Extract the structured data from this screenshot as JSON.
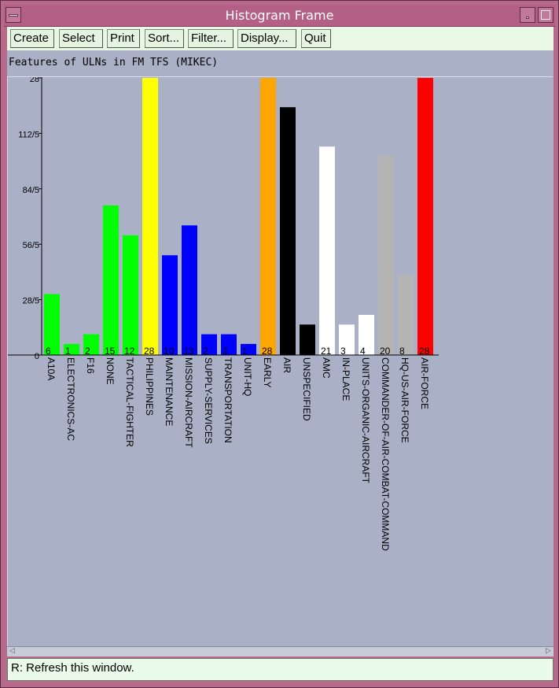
{
  "window": {
    "title": "Histogram Frame"
  },
  "toolbar": {
    "buttons": [
      {
        "label": "Create"
      },
      {
        "label": "Select"
      },
      {
        "label": "Print"
      },
      {
        "label": "Sort..."
      },
      {
        "label": "Filter..."
      },
      {
        "label": "Display..."
      },
      {
        "label": "Quit"
      }
    ]
  },
  "status": {
    "text": "R: Refresh this window."
  },
  "chart_data": {
    "type": "bar",
    "title": "Features of ULNs in FM TFS (MIKEC)",
    "y_ticks": [
      "0",
      "28/5",
      "56/5",
      "84/5",
      "112/5",
      "28"
    ],
    "ylim": [
      0,
      28
    ],
    "grid": false,
    "categories": [
      "A10A",
      "ELECTRONICS-AC",
      "F16",
      "NONE",
      "TACTICAL-FIGHTER",
      "PHILIPPINES",
      "MAINTENANCE",
      "MISSION-AIRCRAFT",
      "SUPPLY-SERVICES",
      "TRANSPORTATION",
      "UNIT-HQ",
      "EARLY",
      "AIR",
      "UNSPECIFIED",
      "AMC",
      "IN-PLACE",
      "UNITS-ORGANIC-AIRCRAFT",
      "COMMANDER-OF-AIR-COMBAT-COMMAND",
      "HQ-US-AIR-FORCE",
      "AIR-FORCE"
    ],
    "values": [
      6,
      1,
      2,
      15,
      12,
      28,
      10,
      13,
      2,
      2,
      1,
      28,
      25,
      3,
      21,
      3,
      4,
      20,
      8,
      28
    ],
    "bar_heights": [
      6.16,
      1.12,
      2.1,
      15.12,
      12.1,
      28,
      10.08,
      13.1,
      2.1,
      2.1,
      1.12,
      28,
      25.04,
      3.08,
      21.06,
      3.08,
      4.06,
      20.16,
      8.1,
      28
    ],
    "value_labels": [
      "6",
      "1",
      "2",
      "15",
      "12",
      "28",
      "10",
      "13",
      "2",
      "2",
      "1",
      "28",
      "",
      "",
      "21",
      "3",
      "4",
      "20",
      "8",
      "28"
    ],
    "colors": [
      "#00ff00",
      "#00ff00",
      "#00ff00",
      "#00ff00",
      "#00ff00",
      "#ffff00",
      "#0000ff",
      "#0000ff",
      "#0000ff",
      "#0000ff",
      "#0000ff",
      "#ffa500",
      "#000000",
      "#000000",
      "#ffffff",
      "#ffffff",
      "#ffffff",
      "#b4b4b4",
      "#b4b4b4",
      "#ff0000"
    ]
  }
}
